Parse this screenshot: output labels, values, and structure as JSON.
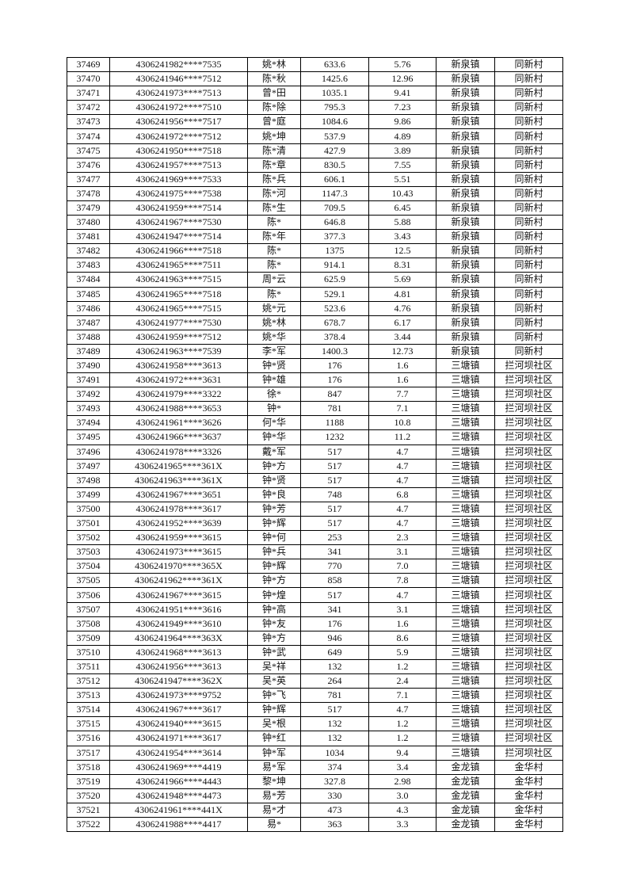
{
  "rows": [
    [
      "37469",
      "4306241982****7535",
      "姚*林",
      "633.6",
      "5.76",
      "新泉镇",
      "同新村"
    ],
    [
      "37470",
      "4306241946****7512",
      "陈*秋",
      "1425.6",
      "12.96",
      "新泉镇",
      "同新村"
    ],
    [
      "37471",
      "4306241973****7513",
      "曾*田",
      "1035.1",
      "9.41",
      "新泉镇",
      "同新村"
    ],
    [
      "37472",
      "4306241972****7510",
      "陈*除",
      "795.3",
      "7.23",
      "新泉镇",
      "同新村"
    ],
    [
      "37473",
      "4306241956****7517",
      "曾*庭",
      "1084.6",
      "9.86",
      "新泉镇",
      "同新村"
    ],
    [
      "37474",
      "4306241972****7512",
      "姚*坤",
      "537.9",
      "4.89",
      "新泉镇",
      "同新村"
    ],
    [
      "37475",
      "4306241950****7518",
      "陈*清",
      "427.9",
      "3.89",
      "新泉镇",
      "同新村"
    ],
    [
      "37476",
      "4306241957****7513",
      "陈*章",
      "830.5",
      "7.55",
      "新泉镇",
      "同新村"
    ],
    [
      "37477",
      "4306241969****7533",
      "陈*兵",
      "606.1",
      "5.51",
      "新泉镇",
      "同新村"
    ],
    [
      "37478",
      "4306241975****7538",
      "陈*河",
      "1147.3",
      "10.43",
      "新泉镇",
      "同新村"
    ],
    [
      "37479",
      "4306241959****7514",
      "陈*生",
      "709.5",
      "6.45",
      "新泉镇",
      "同新村"
    ],
    [
      "37480",
      "4306241967****7530",
      "陈*",
      "646.8",
      "5.88",
      "新泉镇",
      "同新村"
    ],
    [
      "37481",
      "4306241947****7514",
      "陈*年",
      "377.3",
      "3.43",
      "新泉镇",
      "同新村"
    ],
    [
      "37482",
      "4306241966****7518",
      "陈*",
      "1375",
      "12.5",
      "新泉镇",
      "同新村"
    ],
    [
      "37483",
      "4306241965****7511",
      "陈*",
      "914.1",
      "8.31",
      "新泉镇",
      "同新村"
    ],
    [
      "37484",
      "4306241963****7515",
      "周*云",
      "625.9",
      "5.69",
      "新泉镇",
      "同新村"
    ],
    [
      "37485",
      "4306241965****7518",
      "陈*",
      "529.1",
      "4.81",
      "新泉镇",
      "同新村"
    ],
    [
      "37486",
      "4306241965****7515",
      "姚*元",
      "523.6",
      "4.76",
      "新泉镇",
      "同新村"
    ],
    [
      "37487",
      "4306241977****7530",
      "姚*林",
      "678.7",
      "6.17",
      "新泉镇",
      "同新村"
    ],
    [
      "37488",
      "4306241959****7512",
      "姚*华",
      "378.4",
      "3.44",
      "新泉镇",
      "同新村"
    ],
    [
      "37489",
      "4306241963****7539",
      "李*军",
      "1400.3",
      "12.73",
      "新泉镇",
      "同新村"
    ],
    [
      "37490",
      "4306241958****3613",
      "钟*贤",
      "176",
      "1.6",
      "三塘镇",
      "拦河坝社区"
    ],
    [
      "37491",
      "4306241972****3631",
      "钟*雄",
      "176",
      "1.6",
      "三塘镇",
      "拦河坝社区"
    ],
    [
      "37492",
      "4306241979****3322",
      "徐*",
      "847",
      "7.7",
      "三塘镇",
      "拦河坝社区"
    ],
    [
      "37493",
      "4306241988****3653",
      "钟*",
      "781",
      "7.1",
      "三塘镇",
      "拦河坝社区"
    ],
    [
      "37494",
      "4306241961****3626",
      "何*华",
      "1188",
      "10.8",
      "三塘镇",
      "拦河坝社区"
    ],
    [
      "37495",
      "4306241966****3637",
      "钟*华",
      "1232",
      "11.2",
      "三塘镇",
      "拦河坝社区"
    ],
    [
      "37496",
      "4306241978****3326",
      "戴*军",
      "517",
      "4.7",
      "三塘镇",
      "拦河坝社区"
    ],
    [
      "37497",
      "4306241965****361X",
      "钟*方",
      "517",
      "4.7",
      "三塘镇",
      "拦河坝社区"
    ],
    [
      "37498",
      "4306241963****361X",
      "钟*贤",
      "517",
      "4.7",
      "三塘镇",
      "拦河坝社区"
    ],
    [
      "37499",
      "4306241967****3651",
      "钟*良",
      "748",
      "6.8",
      "三塘镇",
      "拦河坝社区"
    ],
    [
      "37500",
      "4306241978****3617",
      "钟*芳",
      "517",
      "4.7",
      "三塘镇",
      "拦河坝社区"
    ],
    [
      "37501",
      "4306241952****3639",
      "钟*辉",
      "517",
      "4.7",
      "三塘镇",
      "拦河坝社区"
    ],
    [
      "37502",
      "4306241959****3615",
      "钟*何",
      "253",
      "2.3",
      "三塘镇",
      "拦河坝社区"
    ],
    [
      "37503",
      "4306241973****3615",
      "钟*兵",
      "341",
      "3.1",
      "三塘镇",
      "拦河坝社区"
    ],
    [
      "37504",
      "4306241970****365X",
      "钟*辉",
      "770",
      "7.0",
      "三塘镇",
      "拦河坝社区"
    ],
    [
      "37505",
      "4306241962****361X",
      "钟*方",
      "858",
      "7.8",
      "三塘镇",
      "拦河坝社区"
    ],
    [
      "37506",
      "4306241967****3615",
      "钟*煌",
      "517",
      "4.7",
      "三塘镇",
      "拦河坝社区"
    ],
    [
      "37507",
      "4306241951****3616",
      "钟*高",
      "341",
      "3.1",
      "三塘镇",
      "拦河坝社区"
    ],
    [
      "37508",
      "4306241949****3610",
      "钟*友",
      "176",
      "1.6",
      "三塘镇",
      "拦河坝社区"
    ],
    [
      "37509",
      "4306241964****363X",
      "钟*方",
      "946",
      "8.6",
      "三塘镇",
      "拦河坝社区"
    ],
    [
      "37510",
      "4306241968****3613",
      "钟*武",
      "649",
      "5.9",
      "三塘镇",
      "拦河坝社区"
    ],
    [
      "37511",
      "4306241956****3613",
      "吴*祥",
      "132",
      "1.2",
      "三塘镇",
      "拦河坝社区"
    ],
    [
      "37512",
      "4306241947****362X",
      "吴*英",
      "264",
      "2.4",
      "三塘镇",
      "拦河坝社区"
    ],
    [
      "37513",
      "4306241973****9752",
      "钟*飞",
      "781",
      "7.1",
      "三塘镇",
      "拦河坝社区"
    ],
    [
      "37514",
      "4306241967****3617",
      "钟*辉",
      "517",
      "4.7",
      "三塘镇",
      "拦河坝社区"
    ],
    [
      "37515",
      "4306241940****3615",
      "吴*根",
      "132",
      "1.2",
      "三塘镇",
      "拦河坝社区"
    ],
    [
      "37516",
      "4306241971****3617",
      "钟*红",
      "132",
      "1.2",
      "三塘镇",
      "拦河坝社区"
    ],
    [
      "37517",
      "4306241954****3614",
      "钟*军",
      "1034",
      "9.4",
      "三塘镇",
      "拦河坝社区"
    ],
    [
      "37518",
      "4306241969****4419",
      "易*军",
      "374",
      "3.4",
      "金龙镇",
      "金华村"
    ],
    [
      "37519",
      "4306241966****4443",
      "黎*坤",
      "327.8",
      "2.98",
      "金龙镇",
      "金华村"
    ],
    [
      "37520",
      "4306241948****4473",
      "易*芳",
      "330",
      "3.0",
      "金龙镇",
      "金华村"
    ],
    [
      "37521",
      "4306241961****441X",
      "易*才",
      "473",
      "4.3",
      "金龙镇",
      "金华村"
    ],
    [
      "37522",
      "4306241988****4417",
      "易*",
      "363",
      "3.3",
      "金龙镇",
      "金华村"
    ]
  ]
}
